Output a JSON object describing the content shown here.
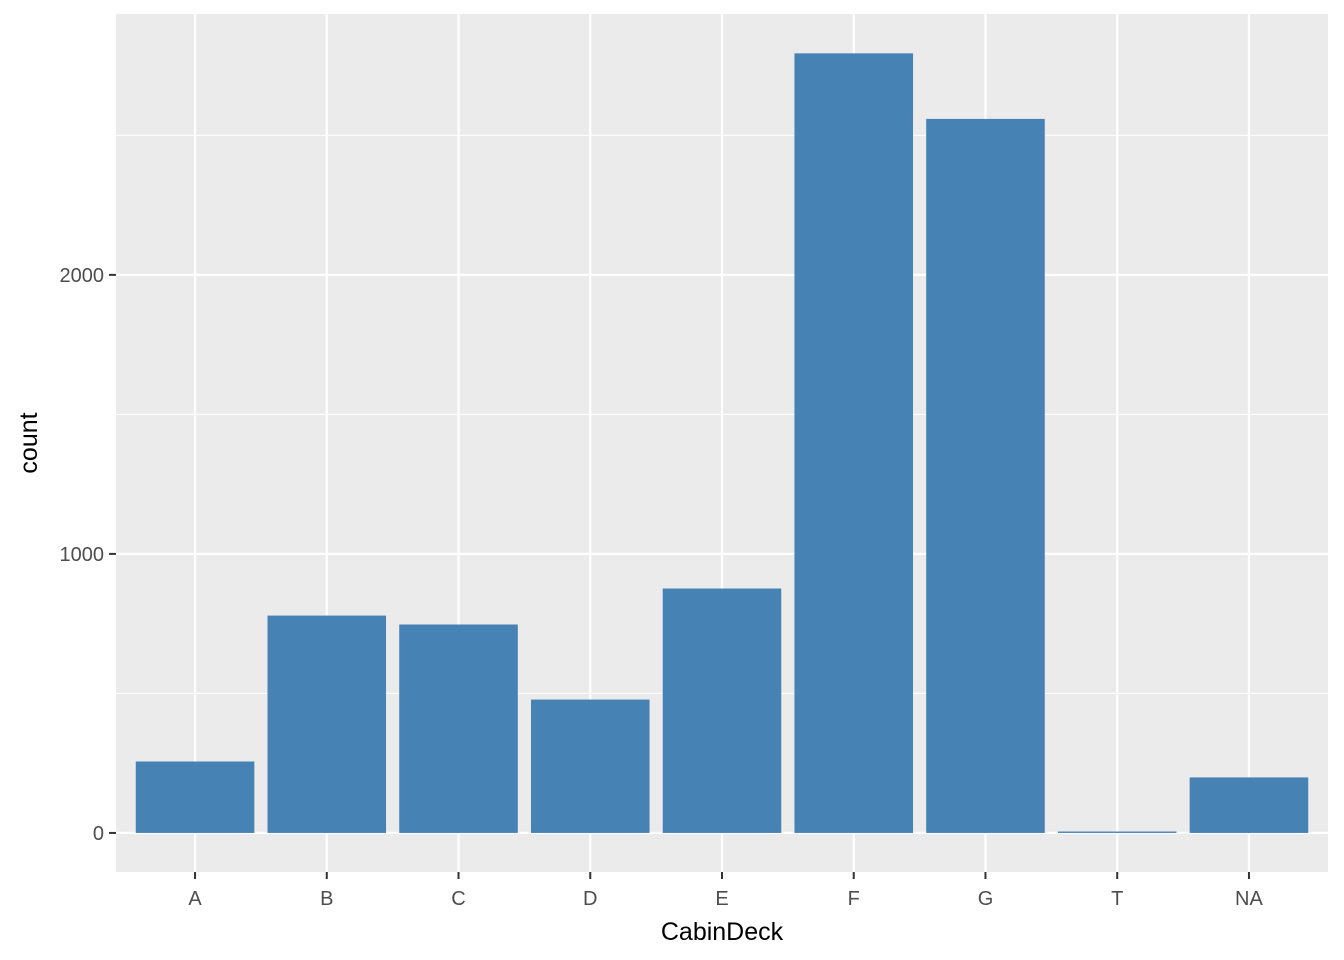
{
  "chart_data": {
    "type": "bar",
    "categories": [
      "A",
      "B",
      "C",
      "D",
      "E",
      "F",
      "G",
      "T",
      "NA"
    ],
    "values": [
      256,
      779,
      747,
      478,
      876,
      2794,
      2559,
      5,
      199
    ],
    "xlabel": "CabinDeck",
    "ylabel": "count",
    "ylim": [
      -140,
      2935
    ],
    "yticks": [
      0,
      1000,
      2000
    ],
    "yticks_labels": [
      "0",
      "1000",
      "2000"
    ],
    "grid": true,
    "legend": "none",
    "bar_color": "#4682B4",
    "panel_color": "#EBEBEB",
    "grid_color": "#FFFFFF"
  }
}
